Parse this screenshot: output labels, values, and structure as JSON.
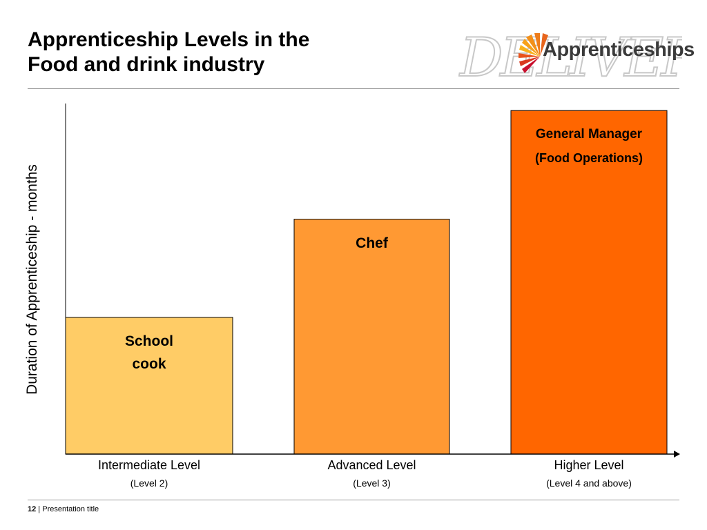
{
  "title": {
    "line1": "Apprenticeship Levels in the",
    "line2": "Food and drink industry"
  },
  "logo": {
    "text": "Apprenticeships",
    "background_text": "DELIVER",
    "brand_colors": [
      "#f7a11a",
      "#e8521c",
      "#c8102e"
    ]
  },
  "chart_data": {
    "type": "bar",
    "ylabel": "Duration of Apprenticeship - months",
    "categories": [
      {
        "main": "Intermediate Level",
        "sub": "(Level 2)"
      },
      {
        "main": "Advanced Level",
        "sub": "(Level 3)"
      },
      {
        "main": "Higher Level",
        "sub": "(Level 4 and above)"
      }
    ],
    "values": [
      0.39,
      0.67,
      0.98
    ],
    "bar_labels": [
      [
        "School",
        "cook"
      ],
      [
        "Chef"
      ],
      [
        "General Manager",
        "(Food Operations)"
      ]
    ],
    "colors": [
      "#ffcc66",
      "#ff9933",
      "#ff6600"
    ],
    "ylim": [
      0,
      1
    ],
    "grid": false
  },
  "footer": {
    "page_number": "12",
    "separator": " | ",
    "text": "Presentation title"
  }
}
